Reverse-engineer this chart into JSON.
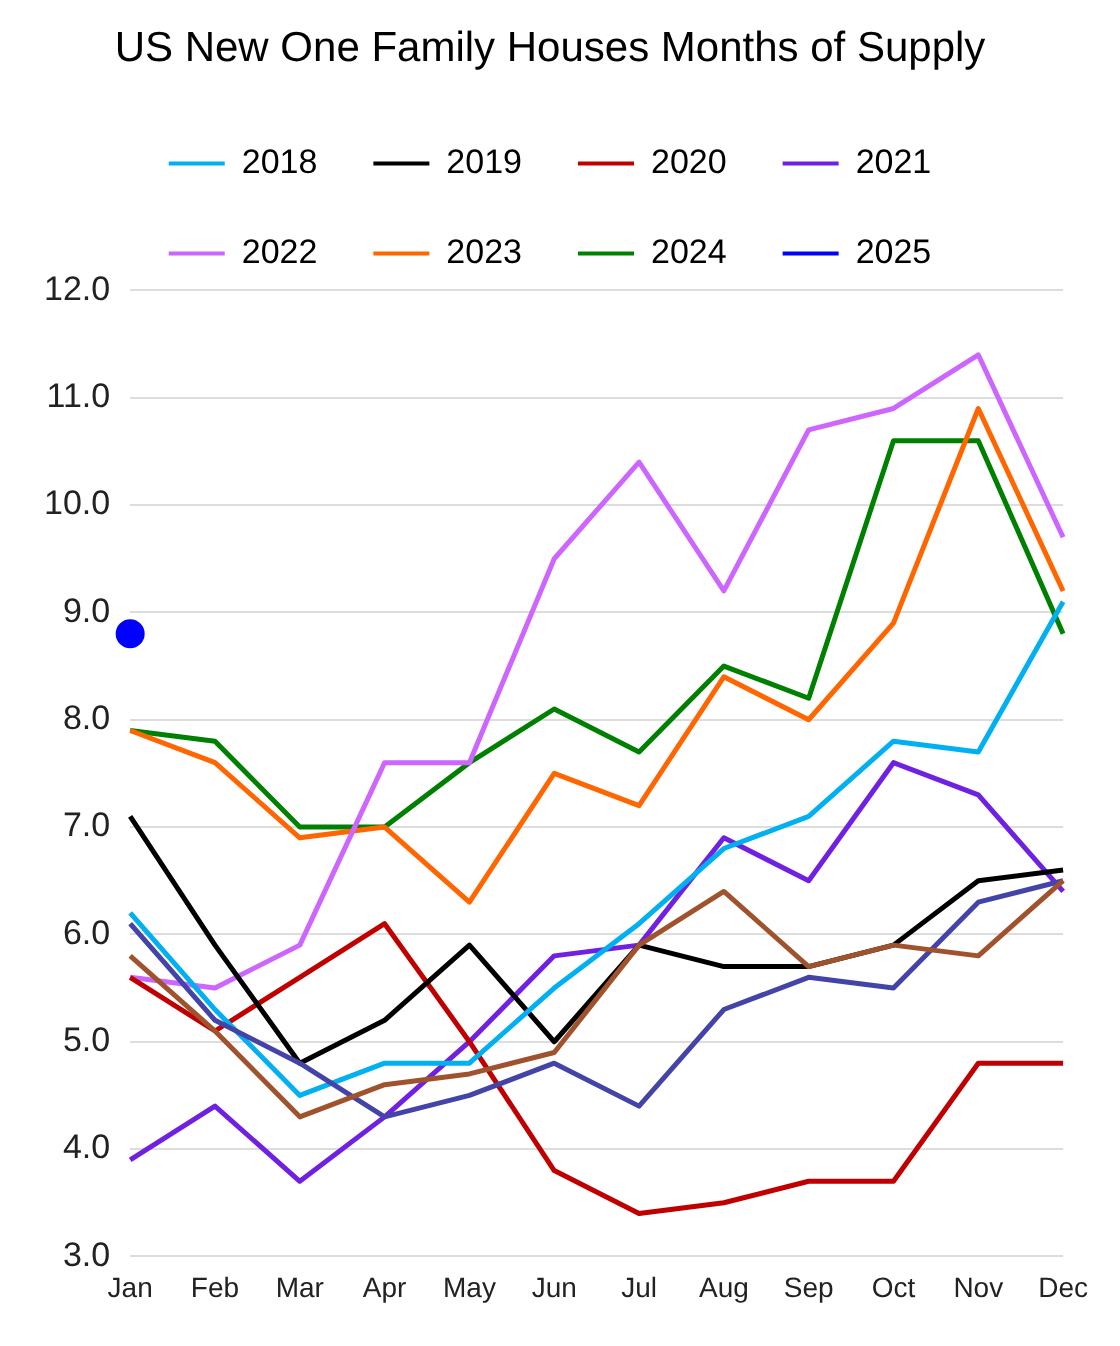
{
  "chart_data": {
    "type": "line",
    "title": "US New One Family Houses Months of Supply",
    "categories": [
      "Jan",
      "Feb",
      "Mar",
      "Apr",
      "May",
      "Jun",
      "Jul",
      "Aug",
      "Sep",
      "Oct",
      "Nov",
      "Dec"
    ],
    "ylim": [
      3,
      12
    ],
    "yticks": [
      {
        "value": 3,
        "label": "3.0"
      },
      {
        "value": 4,
        "label": "4.0"
      },
      {
        "value": 5,
        "label": "5.0"
      },
      {
        "value": 6,
        "label": "6.0"
      },
      {
        "value": 7,
        "label": "7.0"
      },
      {
        "value": 8,
        "label": "8.0"
      },
      {
        "value": 9,
        "label": "9.0"
      },
      {
        "value": 10,
        "label": "10.0"
      },
      {
        "value": 11,
        "label": "11.0"
      },
      {
        "value": 12,
        "label": "12.0"
      }
    ],
    "grid": "y",
    "legend": "top",
    "marker": "none",
    "line_style": "solid",
    "series": [
      {
        "color": "#a0522d",
        "values": [
          5.8,
          5.1,
          4.3,
          4.6,
          4.7,
          4.9,
          5.9,
          6.4,
          5.7,
          5.9,
          5.8,
          6.5
        ]
      },
      {
        "color": "#4444a8",
        "values": [
          6.1,
          5.2,
          4.8,
          4.3,
          4.5,
          4.8,
          4.4,
          5.3,
          5.6,
          5.5,
          6.3,
          6.5
        ]
      },
      {
        "name": "2018",
        "color": "#00b0f0",
        "values": [
          6.2,
          5.3,
          4.5,
          4.8,
          4.8,
          5.5,
          6.1,
          6.8,
          7.1,
          7.8,
          7.7,
          9.1
        ]
      },
      {
        "name": "2019",
        "color": "#000000",
        "values": [
          7.1,
          5.9,
          4.8,
          5.2,
          5.9,
          5.0,
          5.9,
          5.7,
          5.7,
          5.9,
          6.5,
          6.6
        ]
      },
      {
        "name": "2020",
        "color": "#c00000",
        "values": [
          5.6,
          5.1,
          5.6,
          6.1,
          5.0,
          3.8,
          3.4,
          3.5,
          3.7,
          3.7,
          4.8,
          4.8
        ]
      },
      {
        "name": "2021",
        "color": "#7020e0",
        "values": [
          3.9,
          4.4,
          3.7,
          4.3,
          5.0,
          5.8,
          5.9,
          6.9,
          6.5,
          7.6,
          7.3,
          6.4
        ]
      },
      {
        "name": "2022",
        "color": "#cc66ff",
        "values": [
          5.6,
          5.5,
          5.9,
          7.6,
          7.6,
          9.5,
          10.4,
          9.2,
          10.7,
          10.9,
          11.4,
          9.7
        ]
      },
      {
        "name": "2023",
        "color": "#ff6600",
        "values": [
          7.9,
          7.6,
          6.9,
          7.0,
          6.3,
          7.5,
          7.2,
          8.4,
          8.0,
          8.9,
          10.9,
          9.2
        ]
      },
      {
        "name": "2024",
        "color": "#008000",
        "values": [
          7.9,
          7.8,
          7.0,
          7.0,
          7.6,
          8.1,
          7.7,
          8.5,
          8.2,
          10.6,
          10.6,
          8.8
        ]
      },
      {
        "name": "2025",
        "color": "#0000ff",
        "marker": "circle",
        "values": [
          8.8,
          null,
          null,
          null,
          null,
          null,
          null,
          null,
          null,
          null,
          null,
          null
        ]
      }
    ]
  }
}
